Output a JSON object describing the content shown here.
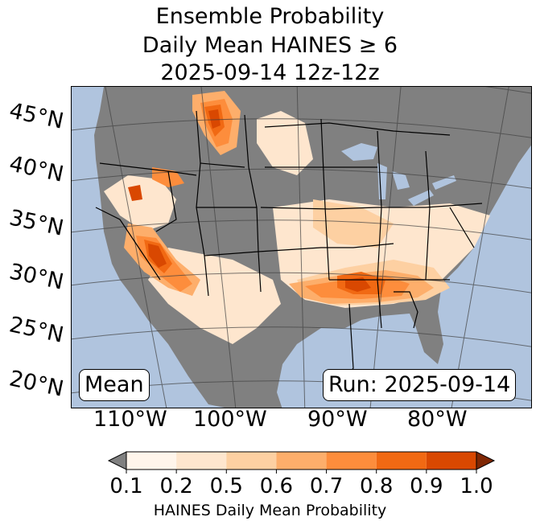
{
  "title": {
    "line1": "Ensemble Probability",
    "line2": "Daily Mean HAINES ≥ 6",
    "line3": "2025-09-14 12z-12z"
  },
  "map": {
    "ocean_color": "#b0c4de",
    "land_background_color": "#808080",
    "latitude_labels": [
      "45°N",
      "40°N",
      "35°N",
      "30°N",
      "25°N",
      "20°N"
    ],
    "longitude_labels": [
      "110°W",
      "100°W",
      "90°W",
      "80°W"
    ],
    "mean_label": "Mean",
    "run_label": "Run: 2025-09-14"
  },
  "colorbar": {
    "under_color": "#808080",
    "over_color": "#7f2704",
    "bins": [
      {
        "low": 0.1,
        "high": 0.2,
        "color": "#fff5eb"
      },
      {
        "low": 0.2,
        "high": 0.5,
        "color": "#fee6ce"
      },
      {
        "low": 0.5,
        "high": 0.6,
        "color": "#fdd0a2"
      },
      {
        "low": 0.6,
        "high": 0.7,
        "color": "#fdae6b"
      },
      {
        "low": 0.7,
        "high": 0.8,
        "color": "#fd8d3c"
      },
      {
        "low": 0.8,
        "high": 0.9,
        "color": "#f16913"
      },
      {
        "low": 0.9,
        "high": 1.0,
        "color": "#d94801"
      }
    ],
    "tick_labels": [
      "0.1",
      "0.2",
      "0.5",
      "0.6",
      "0.7",
      "0.8",
      "0.9",
      "1.0"
    ],
    "label": "HAINES Daily Mean Probability"
  }
}
